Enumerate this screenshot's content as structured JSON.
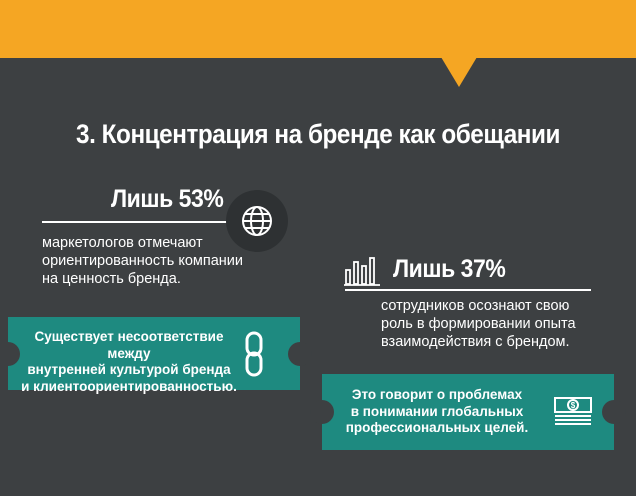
{
  "title": "3. Концентрация на бренде как обещании",
  "stat1": {
    "title": "Лишь 53%",
    "desc": [
      "маркетологов отмечают",
      "ориентированность компании",
      "на ценность бренда."
    ]
  },
  "stat2": {
    "title": "Лишь 37%",
    "desc": [
      "сотрудников осознают свою",
      "роль в формировании опыта",
      "взаимодействия с брендом."
    ]
  },
  "ticket1": {
    "lines": [
      "Существует несоответствие между",
      "внутренней культурой бренда",
      "и клиентоориентированностью."
    ]
  },
  "ticket2": {
    "lines": [
      "Это говорит о проблемах",
      "в понимании глобальных",
      "профессиональных целей."
    ],
    "money_symbol": "$"
  },
  "colors": {
    "background": "#3d4042",
    "accent_orange": "#f5a623",
    "teal": "#1e8a80",
    "icon_circle": "#2e3133"
  },
  "icons": [
    "globe-icon",
    "bar-chart-icon",
    "chain-link-icon",
    "money-icon"
  ]
}
